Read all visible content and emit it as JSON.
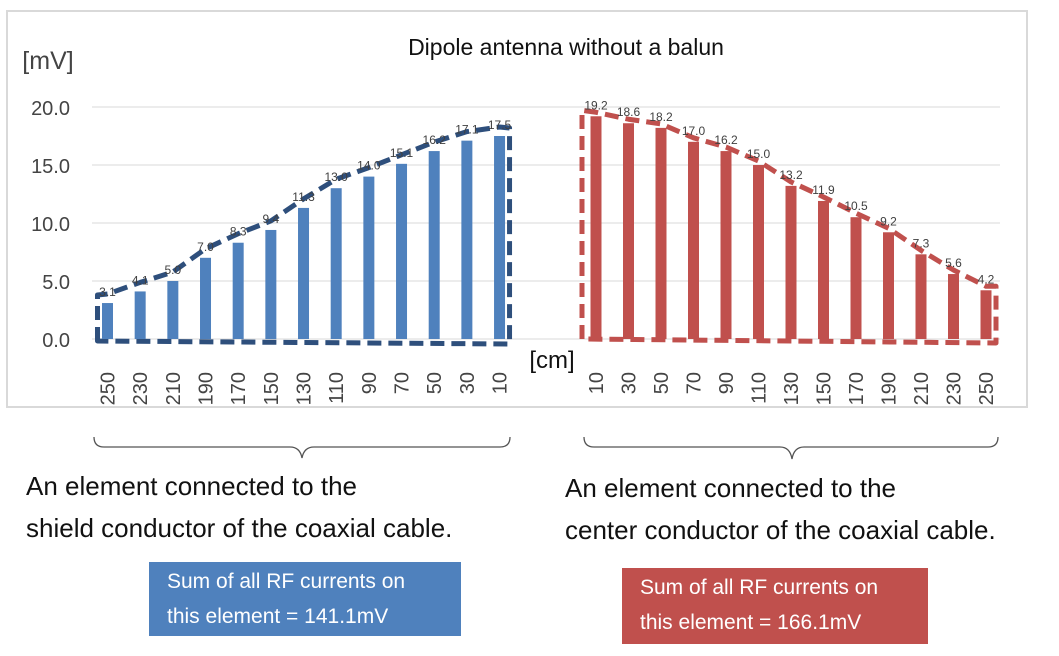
{
  "chart_data": {
    "type": "bar",
    "title": "Dipole antenna without a balun",
    "ylabel": "[mV]",
    "xlabel": "[cm]",
    "ylim": [
      0,
      20
    ],
    "yticks": [
      "0.0",
      "5.0",
      "10.0",
      "15.0",
      "20.0"
    ],
    "grid": true,
    "legend": "none",
    "panels": [
      {
        "categories": [
          "250",
          "230",
          "210",
          "190",
          "170",
          "150",
          "130",
          "110",
          "90",
          "70",
          "50",
          "30",
          "10"
        ],
        "values": [
          3.1,
          4.1,
          5.0,
          7.0,
          8.3,
          9.4,
          11.3,
          13.0,
          14.0,
          15.1,
          16.2,
          17.1,
          17.5
        ],
        "labels": [
          "3.1",
          "4.1",
          "5.0",
          "7.0",
          "8.3",
          "9.4",
          "11.3",
          "13.0",
          "14.0",
          "15.1",
          "16.2",
          "17.1",
          "17.5"
        ],
        "color": "#4f81bd",
        "outline_color": "#2e4f7c"
      },
      {
        "categories": [
          "10",
          "30",
          "50",
          "70",
          "90",
          "110",
          "130",
          "150",
          "170",
          "190",
          "210",
          "230",
          "250"
        ],
        "values": [
          19.2,
          18.6,
          18.2,
          17.0,
          16.2,
          15.0,
          13.2,
          11.9,
          10.5,
          9.2,
          7.3,
          5.6,
          4.2
        ],
        "labels": [
          "19.2",
          "18.6",
          "18.2",
          "17.0",
          "16.2",
          "15.0",
          "13.2",
          "11.9",
          "10.5",
          "9.2",
          "7.3",
          "5.6",
          "4.2"
        ],
        "color": "#c0504d",
        "outline_color": "#c0504d"
      }
    ]
  },
  "captions": {
    "left_line1": "An element connected to the",
    "left_line2": "shield conductor of the coaxial cable.",
    "right_line1": "An element connected to the",
    "right_line2": "center conductor of the coaxial cable."
  },
  "sums": {
    "left_line1": "Sum of all RF currents on",
    "left_line2": "this element = 141.1mV",
    "left_color": "#4f81bd",
    "right_line1": "Sum of all RF currents on",
    "right_line2": "this element = 166.1mV",
    "right_color": "#c0504d"
  }
}
